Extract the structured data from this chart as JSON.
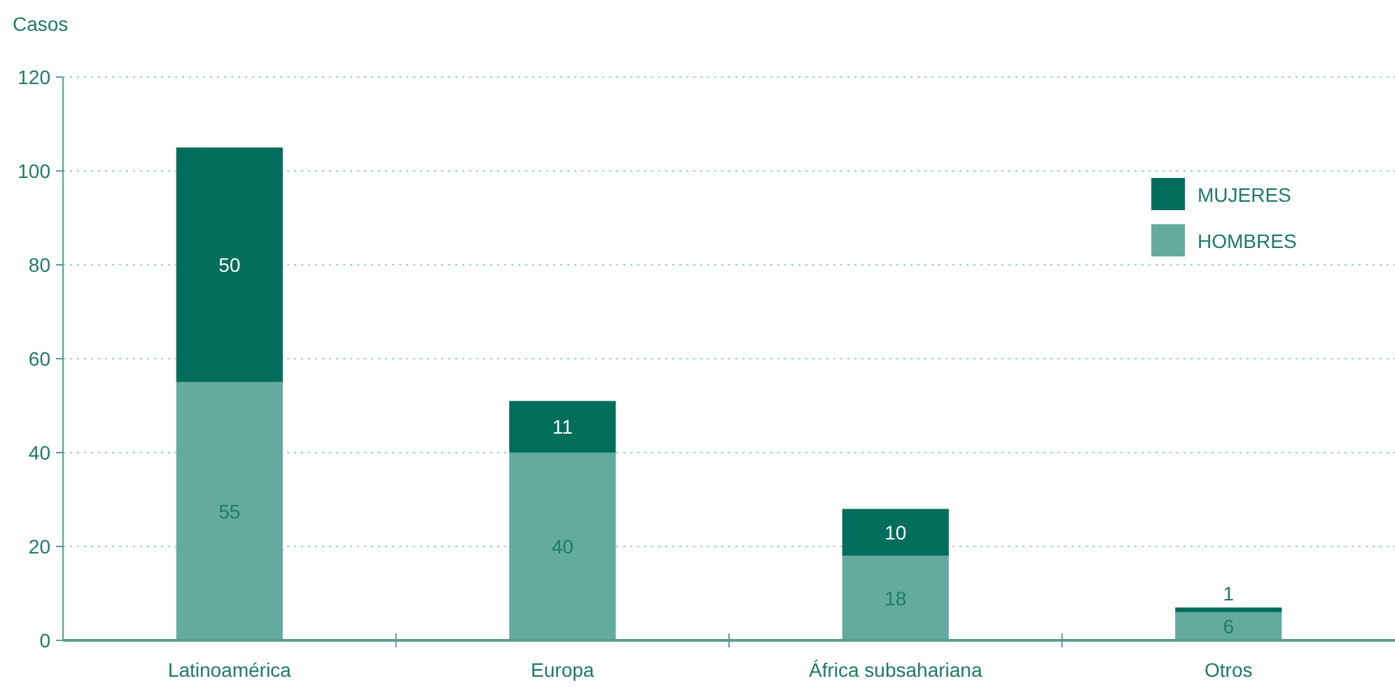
{
  "chart_data": {
    "type": "bar",
    "ylabel": "Casos",
    "categories": [
      "Latinoamérica",
      "Europa",
      "África subsahariana",
      "Otros"
    ],
    "series": [
      {
        "name": "HOMBRES",
        "color": "#64ab9f",
        "values": [
          55,
          40,
          18,
          6
        ]
      },
      {
        "name": "MUJERES",
        "color": "#006e5a",
        "values": [
          50,
          11,
          10,
          1
        ]
      }
    ],
    "stacked": true,
    "ylim": [
      0,
      120
    ],
    "yticks": [
      0,
      20,
      40,
      60,
      80,
      100,
      120
    ],
    "grid": "y",
    "legend": "top right",
    "data_labels": true
  }
}
